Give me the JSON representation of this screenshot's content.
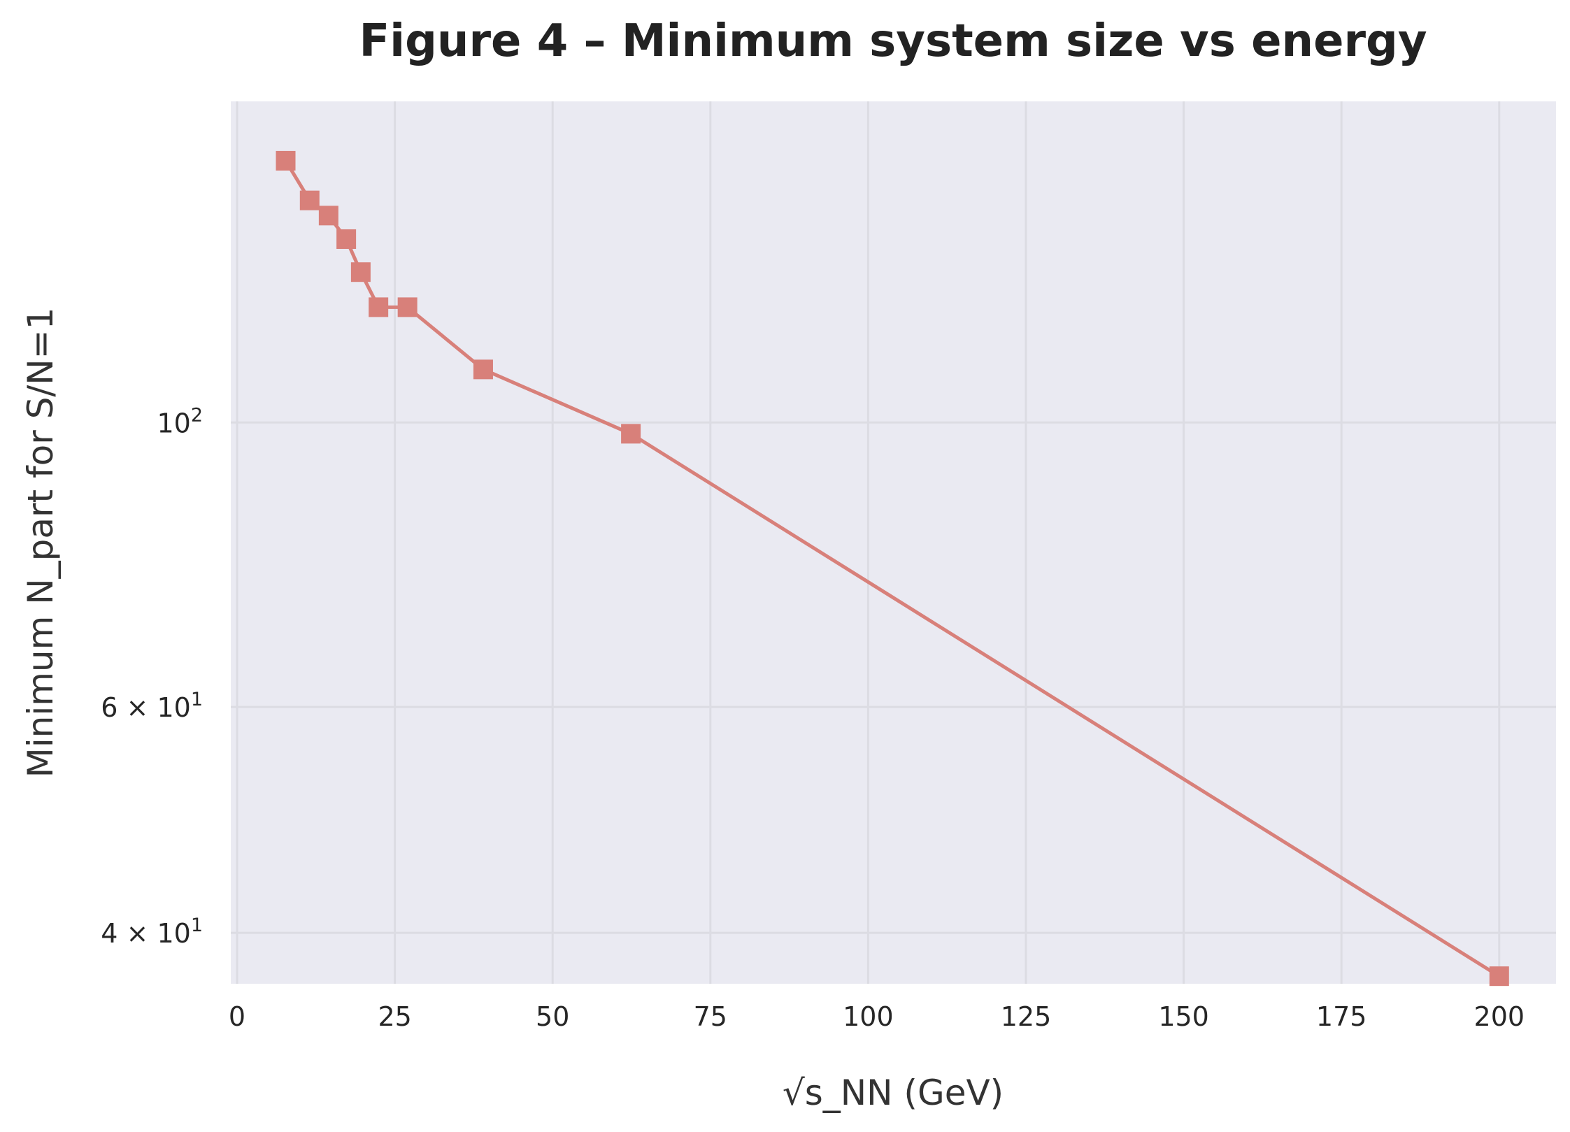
{
  "chart_data": {
    "type": "line",
    "title": "Figure 4 – Minimum system size vs energy",
    "xlabel": "√s_NN (GeV)",
    "ylabel": "Minimum N_part for S/N=1",
    "x_scale": "linear",
    "y_scale": "log",
    "xlim": [
      -1,
      209
    ],
    "ylim": [
      36.5,
      178
    ],
    "xticks": [
      0,
      25,
      50,
      75,
      100,
      125,
      150,
      175,
      200
    ],
    "yticks": [
      {
        "value": 100,
        "base": "10",
        "exp": "2",
        "prefix": ""
      },
      {
        "value": 60,
        "base": "10",
        "exp": "1",
        "prefix": "6 × "
      },
      {
        "value": 40,
        "base": "10",
        "exp": "1",
        "prefix": "4 × "
      }
    ],
    "grid": true,
    "series": [
      {
        "name": "",
        "color": "#d8807a",
        "marker": "square",
        "x": [
          7.7,
          11.5,
          14.5,
          17.3,
          19.6,
          22.4,
          27,
          39,
          62.4,
          200
        ],
        "y": [
          160,
          149,
          145,
          139,
          131,
          123,
          123,
          110,
          98,
          37
        ]
      }
    ],
    "plot_background": "#eaeaf2"
  }
}
